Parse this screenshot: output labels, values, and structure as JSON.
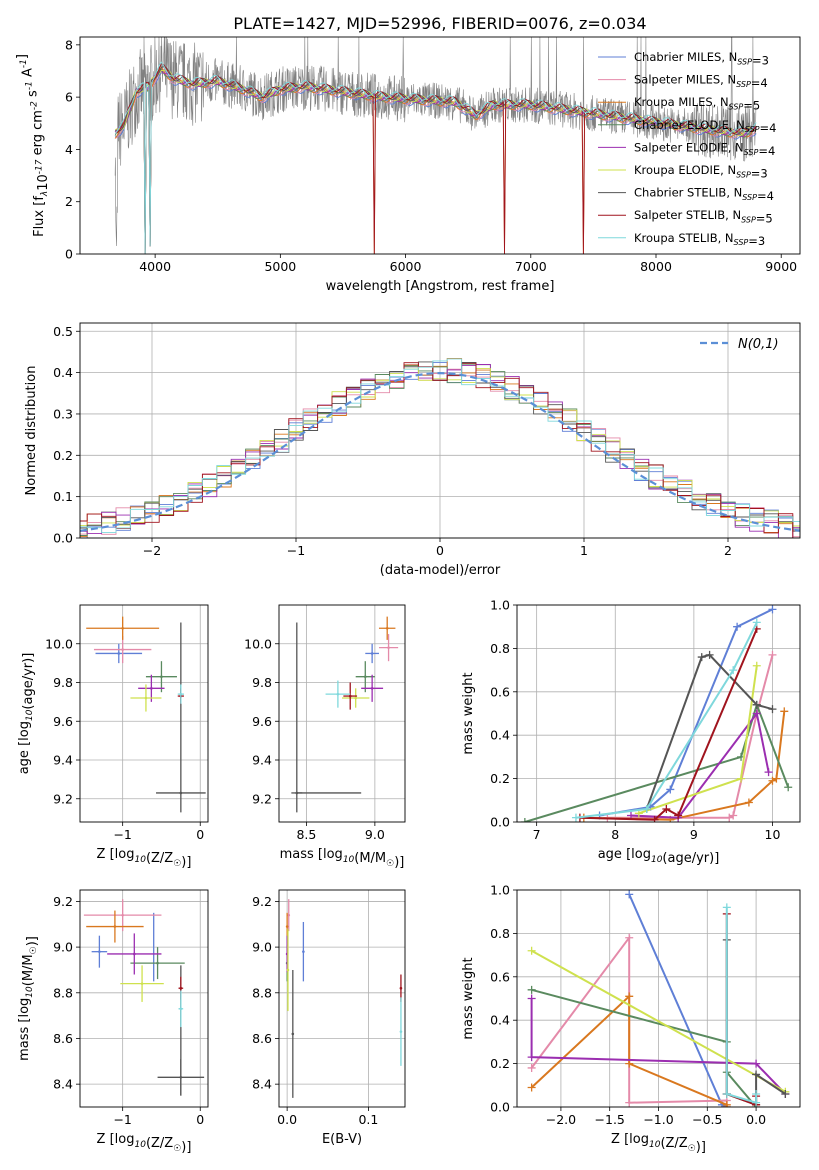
{
  "figure_title": "PLATE=1427, MJD=52996, FIBERID=0076, z=0.034",
  "colors": {
    "Chabrier MILES": "#5f7fd6",
    "Salpeter MILES": "#e48aa9",
    "Kroupa MILES": "#d9781f",
    "Chabrier ELODIE": "#5a8a5f",
    "Salpeter ELODIE": "#9b2eb0",
    "Kroupa ELODIE": "#cfe14e",
    "Chabrier STELIB": "#555555",
    "Salpeter STELIB": "#a0141e",
    "Kroupa STELIB": "#7fd8dc",
    "data": "#808080",
    "gaussian": "#5b8fd6"
  },
  "chart_data": [
    {
      "type": "line",
      "panel": "spectrum",
      "xlabel": "wavelength [Angstrom, rest frame]",
      "ylabel": "Flux [f$_\\lambda$10$^{-17}$ erg cm$^{-2}$ s$^{-1}$ A$^{-1}$]",
      "xlim": [
        3400,
        9150
      ],
      "ylim": [
        0,
        8.3
      ],
      "xticks": [
        4000,
        5000,
        6000,
        7000,
        8000,
        9000
      ],
      "yticks": [
        0,
        2,
        4,
        6,
        8
      ],
      "grid": false,
      "legend_position": "top-right",
      "legend": [
        "Chabrier MILES, N$_{SSP}$=3",
        "Salpeter MILES, N$_{SSP}$=4",
        "Kroupa MILES, N$_{SSP}$=5",
        "Chabrier ELODIE, N$_{SSP}$=4",
        "Salpeter ELODIE, N$_{SSP}$=4",
        "Kroupa ELODIE, N$_{SSP}$=3",
        "Chabrier STELIB, N$_{SSP}$=4",
        "Salpeter STELIB, N$_{SSP}$=5",
        "Kroupa STELIB, N$_{SSP}$=3"
      ],
      "continuum": {
        "x": [
          3680,
          3750,
          3850,
          3950,
          4050,
          4150,
          4300,
          4500,
          4700,
          4860,
          5000,
          5200,
          5500,
          5800,
          6100,
          6400,
          6563,
          6700,
          7000,
          7300,
          7600,
          7900,
          8200,
          8500,
          8700,
          8800
        ],
        "y": [
          4.6,
          4.9,
          6.2,
          6.4,
          7.1,
          6.7,
          6.5,
          6.6,
          6.3,
          6.0,
          6.3,
          6.4,
          6.2,
          6.0,
          5.9,
          5.8,
          5.3,
          5.7,
          5.7,
          5.5,
          5.3,
          5.1,
          4.9,
          4.7,
          4.6,
          4.8
        ]
      },
      "dips": [
        {
          "x": 3920,
          "y": 0.0
        },
        {
          "x": 3960,
          "y": 0.3
        },
        {
          "x": 5750,
          "y": 0.0
        },
        {
          "x": 6790,
          "y": 0.0
        },
        {
          "x": 7420,
          "y": 0.0
        }
      ],
      "data_spike_max": 8.3
    },
    {
      "type": "line",
      "panel": "residual_histogram",
      "xlabel": "(data-model)/error",
      "ylabel": "Normed distribution",
      "xlim": [
        -2.5,
        2.5
      ],
      "ylim": [
        0,
        0.52
      ],
      "xticks": [
        -2,
        -1,
        0,
        1,
        2
      ],
      "yticks": [
        0.0,
        0.1,
        0.2,
        0.3,
        0.4,
        0.5
      ],
      "grid": true,
      "legend": [
        "$\\mathcal{N}(0,1)$"
      ],
      "legend_position": "top-right",
      "bin_width": 0.1,
      "gaussian": {
        "mu": 0,
        "sigma": 1
      }
    },
    {
      "type": "scatter",
      "panel": "age_vs_Z",
      "xlabel": "Z [log$_{10}$(Z/Z$_\\odot$)]",
      "ylabel": "age  [log$_{10}$(age/yr)]",
      "xlim": [
        -1.55,
        0.1
      ],
      "ylim": [
        9.08,
        10.2
      ],
      "xticks": [
        -1,
        0
      ],
      "yticks": [
        9.2,
        9.4,
        9.6,
        9.8,
        10.0
      ],
      "grid": true,
      "points": [
        {
          "model": "Chabrier MILES",
          "x": -1.05,
          "y": 9.95,
          "xerr": 0.3,
          "yerr": 0.05
        },
        {
          "model": "Salpeter MILES",
          "x": -1.0,
          "y": 9.97,
          "xerr": 0.37,
          "yerr": 0.07
        },
        {
          "model": "Kroupa MILES",
          "x": -1.0,
          "y": 10.08,
          "xerr": 0.47,
          "yerr": 0.06
        },
        {
          "model": "Chabrier ELODIE",
          "x": -0.5,
          "y": 9.83,
          "xerr": 0.2,
          "yerr": 0.08
        },
        {
          "model": "Salpeter ELODIE",
          "x": -0.63,
          "y": 9.77,
          "xerr": 0.17,
          "yerr": 0.07
        },
        {
          "model": "Kroupa ELODIE",
          "x": -0.7,
          "y": 9.72,
          "xerr": 0.2,
          "yerr": 0.07
        },
        {
          "model": "Chabrier STELIB",
          "x": -0.25,
          "y": 9.23,
          "xerr": 0.32,
          "yerr": 0.0
        },
        {
          "model": "Salpeter STELIB",
          "x": -0.25,
          "y": 9.73,
          "xerr": 0.04,
          "yerr": 0.04
        },
        {
          "model": "Kroupa STELIB",
          "x": -0.25,
          "y": 9.74,
          "xerr": 0.04,
          "yerr": 0.05
        }
      ],
      "vline_segments": [
        {
          "model": "Chabrier STELIB",
          "x": -0.25,
          "y0": 9.13,
          "y1": 10.11
        }
      ]
    },
    {
      "type": "scatter",
      "panel": "age_vs_mass",
      "xlabel": "mass [log$_{10}$(M/M$_\\odot$)]",
      "ylabel": "",
      "xlim": [
        8.3,
        9.22
      ],
      "ylim": [
        9.08,
        10.2
      ],
      "xticks": [
        8.5,
        9.0
      ],
      "yticks": [
        9.2,
        9.4,
        9.6,
        9.8,
        10.0
      ],
      "grid": true,
      "points": [
        {
          "model": "Chabrier MILES",
          "x": 8.98,
          "y": 9.95,
          "xerr": 0.05,
          "yerr": 0.05
        },
        {
          "model": "Salpeter MILES",
          "x": 9.1,
          "y": 9.98,
          "xerr": 0.07,
          "yerr": 0.07
        },
        {
          "model": "Kroupa MILES",
          "x": 9.09,
          "y": 10.08,
          "xerr": 0.06,
          "yerr": 0.06
        },
        {
          "model": "Chabrier ELODIE",
          "x": 8.93,
          "y": 9.83,
          "xerr": 0.07,
          "yerr": 0.08
        },
        {
          "model": "Salpeter ELODIE",
          "x": 8.98,
          "y": 9.77,
          "xerr": 0.08,
          "yerr": 0.07
        },
        {
          "model": "Kroupa ELODIE",
          "x": 8.86,
          "y": 9.72,
          "xerr": 0.1,
          "yerr": 0.05
        },
        {
          "model": "Chabrier STELIB",
          "x": 8.43,
          "y": 9.23,
          "xerr": 0.04,
          "yerr": 0.0
        },
        {
          "model": "Salpeter STELIB",
          "x": 8.82,
          "y": 9.73,
          "xerr": 0.05,
          "yerr": 0.07
        },
        {
          "model": "Kroupa STELIB",
          "x": 8.73,
          "y": 9.74,
          "xerr": 0.09,
          "yerr": 0.07
        }
      ],
      "hline_segments": [
        {
          "model": "Chabrier STELIB",
          "y": 9.23,
          "x0": 8.43,
          "x1": 8.9
        }
      ],
      "vline_segments": [
        {
          "model": "Chabrier STELIB",
          "x": 8.43,
          "y0": 9.13,
          "y1": 10.11
        }
      ]
    },
    {
      "type": "line",
      "panel": "mass_weight_vs_age",
      "xlabel": "age  [log$_{10}$(age/yr)]",
      "ylabel": "mass weight",
      "xlim": [
        6.75,
        10.35
      ],
      "ylim": [
        0,
        1
      ],
      "xticks": [
        7,
        8,
        9,
        10
      ],
      "yticks": [
        0.0,
        0.2,
        0.4,
        0.6,
        0.8,
        1.0
      ],
      "grid": true,
      "series": [
        {
          "model": "Chabrier MILES",
          "x": [
            7.8,
            8.45,
            8.7,
            9.55,
            10.0
          ],
          "y": [
            0.03,
            0.07,
            0.15,
            0.9,
            0.98
          ]
        },
        {
          "model": "Salpeter MILES",
          "x": [
            7.9,
            9.45,
            9.5,
            9.8,
            10.0
          ],
          "y": [
            0.02,
            0.02,
            0.03,
            0.5,
            0.77
          ]
        },
        {
          "model": "Kroupa MILES",
          "x": [
            7.6,
            8.7,
            9.7,
            10.0,
            10.05,
            10.15
          ],
          "y": [
            0.02,
            0.01,
            0.09,
            0.19,
            0.2,
            0.51
          ]
        },
        {
          "model": "Chabrier ELODIE",
          "x": [
            6.85,
            9.6,
            9.8,
            10.2
          ],
          "y": [
            0.0,
            0.3,
            0.54,
            0.16
          ]
        },
        {
          "model": "Salpeter ELODIE",
          "x": [
            8.2,
            8.8,
            9.8,
            9.95
          ],
          "y": [
            0.03,
            0.02,
            0.5,
            0.23
          ]
        },
        {
          "model": "Kroupa ELODIE",
          "x": [
            8.3,
            9.6,
            9.8
          ],
          "y": [
            0.04,
            0.2,
            0.72
          ]
        },
        {
          "model": "Chabrier STELIB",
          "x": [
            8.4,
            9.1,
            9.2,
            9.8,
            10.0
          ],
          "y": [
            0.06,
            0.76,
            0.77,
            0.54,
            0.52
          ]
        },
        {
          "model": "Salpeter STELIB",
          "x": [
            7.55,
            8.5,
            8.65,
            8.8,
            9.8
          ],
          "y": [
            0.02,
            0.01,
            0.06,
            0.03,
            0.89
          ]
        },
        {
          "model": "Kroupa STELIB",
          "x": [
            7.5,
            8.4,
            9.5,
            9.8
          ],
          "y": [
            0.02,
            0.06,
            0.7,
            0.92
          ]
        }
      ]
    },
    {
      "type": "scatter",
      "panel": "mass_vs_Z",
      "xlabel": "Z [log$_{10}$(Z/Z$_\\odot$)]",
      "ylabel": "mass [log$_{10}$(M/M$_\\odot$)]",
      "xlim": [
        -1.55,
        0.1
      ],
      "ylim": [
        8.3,
        9.25
      ],
      "xticks": [
        -1,
        0
      ],
      "yticks": [
        8.4,
        8.6,
        8.8,
        9.0,
        9.2
      ],
      "grid": true,
      "points": [
        {
          "model": "Chabrier MILES",
          "x": -1.3,
          "y": 8.98,
          "xerr": 0.1,
          "yerr": 0.07
        },
        {
          "model": "Salpeter MILES",
          "x": -1.0,
          "y": 9.14,
          "xerr": 0.5,
          "yerr": 0.07
        },
        {
          "model": "Kroupa MILES",
          "x": -1.1,
          "y": 9.09,
          "xerr": 0.37,
          "yerr": 0.07
        },
        {
          "model": "Chabrier ELODIE",
          "x": -0.55,
          "y": 8.93,
          "xerr": 0.35,
          "yerr": 0.07
        },
        {
          "model": "Salpeter ELODIE",
          "x": -0.85,
          "y": 8.97,
          "xerr": 0.35,
          "yerr": 0.09
        },
        {
          "model": "Kroupa ELODIE",
          "x": -0.75,
          "y": 8.84,
          "xerr": 0.28,
          "yerr": 0.08
        },
        {
          "model": "Chabrier STELIB",
          "x": -0.25,
          "y": 8.43,
          "xerr": 0.3,
          "yerr": 0.08
        },
        {
          "model": "Salpeter STELIB",
          "x": -0.25,
          "y": 8.82,
          "xerr": 0.03,
          "yerr": 0.05
        },
        {
          "model": "Kroupa STELIB",
          "x": -0.25,
          "y": 8.73,
          "xerr": 0.03,
          "yerr": 0.08
        }
      ],
      "vline_segments": [
        {
          "model": "Chabrier MILES",
          "x": -0.6,
          "y0": 8.85,
          "y1": 9.15
        },
        {
          "model": "Chabrier STELIB",
          "x": -0.25,
          "y0": 8.35,
          "y1": 8.92
        }
      ]
    },
    {
      "type": "scatter",
      "panel": "mass_vs_ebv",
      "xlabel": "E(B-V)",
      "ylabel": "",
      "xlim": [
        -0.01,
        0.145
      ],
      "ylim": [
        8.3,
        9.25
      ],
      "xticks": [
        0.0,
        0.1
      ],
      "yticks": [
        8.4,
        8.6,
        8.8,
        9.0,
        9.2
      ],
      "grid": true,
      "points": [
        {
          "model": "Chabrier MILES",
          "x": 0.02,
          "y": 8.98,
          "xerr": 0.0,
          "yerr": 0.13
        },
        {
          "model": "Salpeter MILES",
          "x": 0.002,
          "y": 9.14,
          "xerr": 0.0,
          "yerr": 0.07
        },
        {
          "model": "Kroupa MILES",
          "x": 0.0,
          "y": 9.09,
          "xerr": 0.0,
          "yerr": 0.06
        },
        {
          "model": "Chabrier ELODIE",
          "x": 0.0,
          "y": 8.93,
          "xerr": 0.0,
          "yerr": 0.08
        },
        {
          "model": "Salpeter ELODIE",
          "x": 0.0,
          "y": 8.97,
          "xerr": 0.0,
          "yerr": 0.08
        },
        {
          "model": "Kroupa ELODIE",
          "x": 0.001,
          "y": 8.9,
          "xerr": 0.0,
          "yerr": 0.18
        },
        {
          "model": "Chabrier STELIB",
          "x": 0.007,
          "y": 8.62,
          "xerr": 0.0,
          "yerr": 0.28
        },
        {
          "model": "Salpeter STELIB",
          "x": 0.14,
          "y": 8.82,
          "xerr": 0.0,
          "yerr": 0.06
        },
        {
          "model": "Kroupa STELIB",
          "x": 0.14,
          "y": 8.63,
          "xerr": 0.0,
          "yerr": 0.15
        }
      ]
    },
    {
      "type": "line",
      "panel": "mass_weight_vs_Z",
      "xlabel": "Z [log$_{10}$(Z/Z$_\\odot$)]",
      "ylabel": "mass weight",
      "xlim": [
        -2.45,
        0.45
      ],
      "ylim": [
        0,
        1
      ],
      "xticks": [
        -2.0,
        -1.5,
        -1.0,
        -0.5,
        0.0
      ],
      "yticks": [
        0.0,
        0.2,
        0.4,
        0.6,
        0.8,
        1.0
      ],
      "grid": true,
      "series": [
        {
          "model": "Chabrier MILES",
          "x": [
            -1.3,
            -0.35,
            -0.3
          ],
          "y": [
            0.98,
            0.01,
            0.0
          ]
        },
        {
          "model": "Salpeter MILES",
          "x": [
            -2.3,
            -1.3,
            -1.3,
            -0.3,
            -0.3
          ],
          "y": [
            0.18,
            0.78,
            0.02,
            0.03,
            0.0
          ]
        },
        {
          "model": "Kroupa MILES",
          "x": [
            -2.3,
            -1.3,
            -1.3,
            -0.3,
            -0.3
          ],
          "y": [
            0.09,
            0.51,
            0.2,
            0.01,
            0.0
          ]
        },
        {
          "model": "Chabrier ELODIE",
          "x": [
            -2.3,
            -0.3,
            -0.3,
            0.0
          ],
          "y": [
            0.54,
            0.3,
            0.16,
            0.0
          ]
        },
        {
          "model": "Salpeter ELODIE",
          "x": [
            -2.3,
            -2.3,
            0.0,
            0.3
          ],
          "y": [
            0.5,
            0.23,
            0.2,
            0.06
          ]
        },
        {
          "model": "Kroupa ELODIE",
          "x": [
            -2.3,
            0.3
          ],
          "y": [
            0.72,
            0.07
          ]
        },
        {
          "model": "Chabrier STELIB",
          "x": [
            -0.3,
            -0.3,
            0.0,
            0.0,
            0.3
          ],
          "y": [
            0.77,
            0.06,
            0.01,
            0.15,
            0.06
          ]
        },
        {
          "model": "Salpeter STELIB",
          "x": [
            -0.3,
            -0.3,
            0.0,
            0.0
          ],
          "y": [
            0.89,
            0.06,
            0.01,
            0.05
          ]
        },
        {
          "model": "Kroupa STELIB",
          "x": [
            -0.3,
            -0.3,
            0.0,
            0.0
          ],
          "y": [
            0.92,
            0.06,
            0.02,
            0.06
          ]
        }
      ]
    }
  ]
}
